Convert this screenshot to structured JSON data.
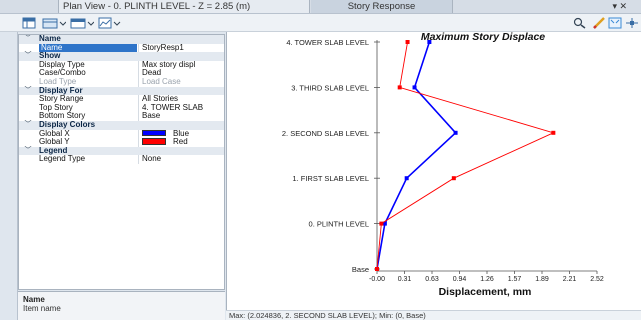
{
  "tabs": {
    "plan_view": "Plan View - 0. PLINTH LEVEL - Z = 2.85 (m)",
    "story_response": "Story Response",
    "controls": "▾ ✕"
  },
  "toolbar": {
    "items": [
      "table-icon",
      "export-icon",
      "columns-icon",
      "graph-icon",
      "zoom-icon",
      "pencil-icon",
      "fit-icon",
      "pan-icon"
    ]
  },
  "property_grid": {
    "rows": [
      {
        "type": "cat",
        "key": "Name",
        "expander": "﹀"
      },
      {
        "type": "sel",
        "key": "Name",
        "value": "StoryResp1"
      },
      {
        "type": "cat",
        "key": "Show",
        "expander": "﹀"
      },
      {
        "type": "row",
        "key": "Display Type",
        "value": "Max story displ"
      },
      {
        "type": "row",
        "key": "Case/Combo",
        "value": "Dead"
      },
      {
        "type": "dis",
        "key": "Load Type",
        "value": "Load Case"
      },
      {
        "type": "cat",
        "key": "Display For",
        "expander": "﹀"
      },
      {
        "type": "row",
        "key": "Story Range",
        "value": "All Stories"
      },
      {
        "type": "row",
        "key": "Top Story",
        "value": "4. TOWER SLAB"
      },
      {
        "type": "row",
        "key": "Bottom Story",
        "value": "Base"
      },
      {
        "type": "cat",
        "key": "Display Colors",
        "expander": "﹀"
      },
      {
        "type": "color",
        "key": "Global X",
        "value": "Blue",
        "color": "#0000ff"
      },
      {
        "type": "color",
        "key": "Global Y",
        "value": "Red",
        "color": "#ff0000"
      },
      {
        "type": "cat",
        "key": "Legend",
        "expander": "﹀"
      },
      {
        "type": "row",
        "key": "Legend Type",
        "value": "None"
      }
    ]
  },
  "description": {
    "title": "Name",
    "text": "Item name"
  },
  "status_bar": "Max: (2.024836, 2. SECOND SLAB LEVEL);   Min: (0, Base)",
  "colors": {
    "global_x": "#0000ff",
    "global_y": "#ff0000",
    "selection": "#2e74c9"
  },
  "chart_data": {
    "type": "line",
    "title": "Maximum Story Displace",
    "xlabel": "Displacement, mm",
    "ylabel": "",
    "xlim": [
      0,
      2.52
    ],
    "x_ticks": [
      "-0.00",
      "0.31",
      "0.63",
      "0.94",
      "1.26",
      "1.57",
      "1.89",
      "2.21",
      "2.52"
    ],
    "categories": [
      "Base",
      "0. PLINTH LEVEL",
      "1. FIRST SLAB LEVEL",
      "2. SECOND SLAB LEVEL",
      "3. THIRD SLAB LEVEL",
      "4. TOWER SLAB LEVEL"
    ],
    "series": [
      {
        "name": "Global X",
        "color": "#0000ff",
        "values": [
          0,
          0.09,
          0.34,
          0.9,
          0.43,
          0.6
        ]
      },
      {
        "name": "Global Y",
        "color": "#ff0000",
        "values": [
          0,
          0.05,
          0.88,
          2.02,
          0.26,
          0.35
        ]
      }
    ],
    "grid": false
  }
}
